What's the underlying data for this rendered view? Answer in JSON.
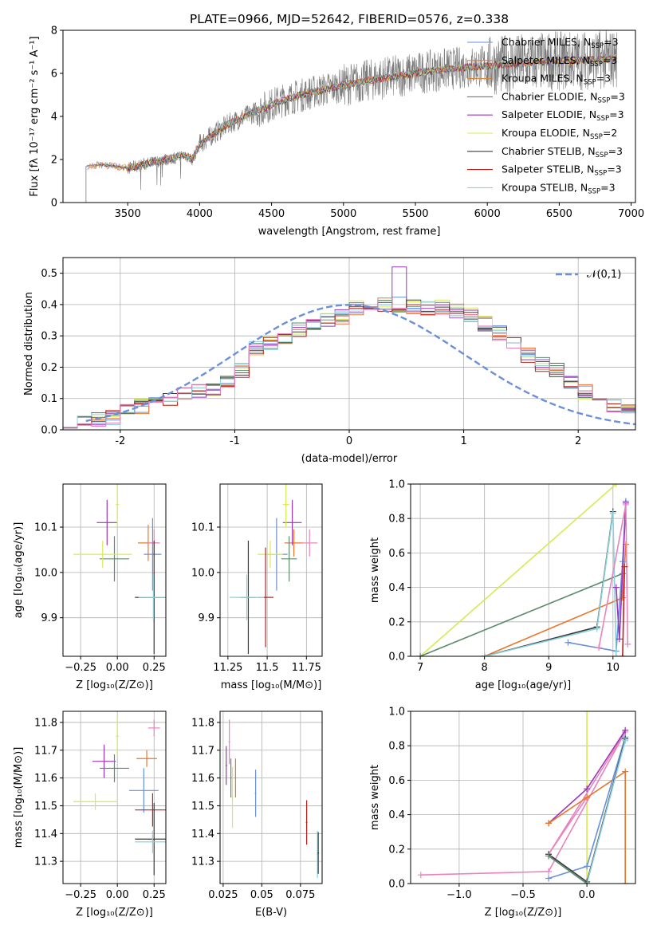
{
  "colors": {
    "chabrier_miles": "#6a8fdb",
    "salpeter_miles": "#e8772e",
    "kroupa_miles": "#d4873a",
    "chabrier_elodie": "#5c8a6a",
    "salpeter_elodie": "#9a35b8",
    "kroupa_elodie": "#d8ea50",
    "chabrier_stelib": "#3b3b3b",
    "salpeter_stelib": "#c0201d",
    "kroupa_stelib": "#8ad1dc",
    "spectrum": "#7a7a7a",
    "gauss": "#6a8fdb",
    "pink": "#e883c0",
    "grid": "#b0b0b0"
  },
  "spectrum_panel": {
    "title": "PLATE=0966, MJD=52642, FIBERID=0576, z=0.338",
    "xlabel": "wavelength [Angstrom, rest frame]",
    "ylabel": "Flux [f_λ 10^-17 erg cm^-2 s^-1 A^-1]",
    "legend": [
      {
        "name": "Chabrier MILES",
        "suffix": "=3",
        "color_key": "chabrier_miles"
      },
      {
        "name": "Salpeter MILES",
        "suffix": "=3",
        "color_key": "salpeter_miles"
      },
      {
        "name": "Kroupa MILES",
        "suffix": "=3",
        "color_key": "kroupa_miles"
      },
      {
        "name": "Chabrier ELODIE",
        "suffix": "=3",
        "color_key": "chabrier_elodie"
      },
      {
        "name": "Salpeter ELODIE",
        "suffix": "=3",
        "color_key": "salpeter_elodie"
      },
      {
        "name": "Kroupa ELODIE",
        "suffix": "=2",
        "color_key": "kroupa_elodie"
      },
      {
        "name": "Chabrier STELIB",
        "suffix": "=3",
        "color_key": "chabrier_stelib"
      },
      {
        "name": "Salpeter STELIB",
        "suffix": "=3",
        "color_key": "salpeter_stelib"
      },
      {
        "name": "Kroupa STELIB",
        "suffix": "=3",
        "color_key": "kroupa_stelib"
      }
    ]
  },
  "chart_data": [
    {
      "type": "line",
      "title": "PLATE=0966, MJD=52642, FIBERID=0576, z=0.338",
      "xlabel": "wavelength [Angstrom, rest frame]",
      "ylabel": "Flux [fλ 10^-17 erg cm^-2 s^-1 A^-1]",
      "xlim": [
        3050,
        7030
      ],
      "ylim": [
        0,
        8
      ],
      "xticks": [
        3500,
        4000,
        4500,
        5000,
        5500,
        6000,
        6500,
        7000
      ],
      "yticks": [
        0,
        2,
        4,
        6,
        8
      ],
      "continuum": {
        "x": [
          3210,
          3300,
          3400,
          3500,
          3600,
          3700,
          3800,
          3900,
          3950,
          4000,
          4100,
          4200,
          4300,
          4400,
          4500,
          4600,
          4800,
          5000,
          5200,
          5400,
          5600,
          5800,
          6000,
          6200,
          6400,
          6600,
          6800,
          6900
        ],
        "y": [
          1.7,
          1.75,
          1.7,
          1.6,
          1.75,
          1.9,
          2.05,
          2.2,
          2.0,
          2.7,
          3.2,
          3.65,
          3.95,
          4.25,
          4.55,
          4.8,
          5.15,
          5.45,
          5.7,
          5.9,
          6.1,
          6.25,
          6.35,
          6.45,
          6.55,
          6.6,
          6.65,
          6.7
        ]
      },
      "legend_position": "right"
    },
    {
      "type": "histogram",
      "xlabel": "(data-model)/error",
      "ylabel": "Normed distribution",
      "xlim": [
        -2.5,
        2.5
      ],
      "ylim": [
        0,
        0.55
      ],
      "xticks": [
        -2,
        -1,
        0,
        1,
        2
      ],
      "yticks": [
        0.0,
        0.1,
        0.2,
        0.3,
        0.4,
        0.5
      ],
      "grid": true,
      "bin_edges_start": -2.5,
      "bin_width": 0.125,
      "base_values": [
        0.03,
        0.025,
        0.03,
        0.04,
        0.06,
        0.075,
        0.09,
        0.1,
        0.11,
        0.12,
        0.13,
        0.15,
        0.19,
        0.26,
        0.28,
        0.3,
        0.32,
        0.33,
        0.35,
        0.36,
        0.39,
        0.4,
        0.4,
        0.4,
        0.39,
        0.39,
        0.39,
        0.38,
        0.37,
        0.34,
        0.31,
        0.27,
        0.24,
        0.21,
        0.19,
        0.15,
        0.12,
        0.1,
        0.08,
        0.06,
        0.05
      ],
      "legend": {
        "label": "𝒩(0,1)",
        "position": "top-right"
      }
    },
    {
      "type": "scatter",
      "xlabel": "Z [log10(Z/Z⊙)]",
      "ylabel": "age [log10(age/yr)]",
      "xlim": [
        -0.37,
        0.33
      ],
      "ylim": [
        9.815,
        10.195
      ],
      "xticks": [
        -0.25,
        0.0,
        0.25
      ],
      "xtick_labels": [
        "−0.25",
        "0.00",
        "0.25"
      ],
      "yticks": [
        9.9,
        10.0,
        10.1
      ],
      "points": [
        {
          "x": 0.21,
          "y": 10.065,
          "xerr": 0.07,
          "yerr": 0.04,
          "c": "salpeter_miles"
        },
        {
          "x": 0.25,
          "y": 10.065,
          "xerr": 0.04,
          "yerr": 0.03,
          "c": "pink"
        },
        {
          "x": 0.24,
          "y": 10.04,
          "xerr": 0.06,
          "yerr": 0.08,
          "c": "chabrier_miles"
        },
        {
          "x": -0.02,
          "y": 10.03,
          "xerr": 0.1,
          "yerr": 0.05,
          "c": "chabrier_elodie"
        },
        {
          "x": -0.07,
          "y": 10.11,
          "xerr": 0.07,
          "yerr": 0.05,
          "c": "salpeter_elodie"
        },
        {
          "x": -0.1,
          "y": 10.04,
          "xerr": 0.2,
          "yerr": 0.03,
          "c": "kroupa_elodie"
        },
        {
          "x": 0.0,
          "y": 10.15,
          "xerr": 0.01,
          "yerr": 0.05,
          "c": "kroupa_elodie"
        },
        {
          "x": 0.25,
          "y": 9.945,
          "xerr": 0.13,
          "yerr": 0.125,
          "c": "chabrier_stelib"
        },
        {
          "x": 0.25,
          "y": 9.945,
          "xerr": 0.12,
          "yerr": 0.055,
          "c": "salpeter_stelib"
        },
        {
          "x": 0.245,
          "y": 9.945,
          "xerr": 0.1,
          "yerr": 0.05,
          "c": "kroupa_stelib"
        }
      ]
    },
    {
      "type": "scatter",
      "xlabel": "mass [log10(M/M⊙)]",
      "xlim": [
        11.2,
        11.85
      ],
      "ylim": [
        9.815,
        10.195
      ],
      "xticks": [
        11.25,
        11.5,
        11.75
      ],
      "yticks": [
        9.9,
        10.0,
        10.1
      ],
      "points": [
        {
          "x": 11.67,
          "y": 10.065,
          "xerr": 0.06,
          "yerr": 0.03,
          "c": "salpeter_miles"
        },
        {
          "x": 11.77,
          "y": 10.065,
          "xerr": 0.05,
          "yerr": 0.03,
          "c": "pink"
        },
        {
          "x": 11.56,
          "y": 10.04,
          "xerr": 0.07,
          "yerr": 0.08,
          "c": "chabrier_miles"
        },
        {
          "x": 11.64,
          "y": 10.03,
          "xerr": 0.05,
          "yerr": 0.05,
          "c": "chabrier_elodie"
        },
        {
          "x": 11.66,
          "y": 10.11,
          "xerr": 0.06,
          "yerr": 0.05,
          "c": "salpeter_elodie"
        },
        {
          "x": 11.52,
          "y": 10.04,
          "xerr": 0.08,
          "yerr": 0.03,
          "c": "kroupa_elodie"
        },
        {
          "x": 11.62,
          "y": 10.15,
          "xerr": 0.02,
          "yerr": 0.05,
          "c": "kroupa_elodie"
        },
        {
          "x": 11.38,
          "y": 9.945,
          "xerr": 0.05,
          "yerr": 0.125,
          "c": "chabrier_stelib"
        },
        {
          "x": 11.49,
          "y": 9.945,
          "xerr": 0.05,
          "yerr": 0.11,
          "c": "salpeter_stelib"
        },
        {
          "x": 11.37,
          "y": 9.945,
          "xerr": 0.11,
          "yerr": 0.05,
          "c": "kroupa_stelib"
        }
      ]
    },
    {
      "type": "line",
      "xlabel": "age [log10(age/yr)]",
      "ylabel": "mass weight",
      "xlim": [
        6.85,
        10.35
      ],
      "ylim": [
        0,
        1
      ],
      "xticks": [
        7,
        8,
        9,
        10
      ],
      "yticks": [
        0.0,
        0.2,
        0.4,
        0.6,
        0.8,
        1.0
      ],
      "grid": true,
      "series": [
        {
          "c": "kroupa_elodie",
          "x": [
            7.0,
            10.05
          ],
          "y": [
            0.0,
            1.0
          ]
        },
        {
          "c": "chabrier_elodie",
          "x": [
            7.0,
            10.15
          ],
          "y": [
            0.0,
            0.48
          ]
        },
        {
          "c": "salpeter_miles",
          "x": [
            8.0,
            10.15,
            10.2
          ],
          "y": [
            0.0,
            0.34,
            0.65
          ]
        },
        {
          "c": "chabrier_miles",
          "x": [
            9.3,
            10.05,
            10.15,
            10.2
          ],
          "y": [
            0.08,
            0.03,
            0.55,
            0.9
          ]
        },
        {
          "c": "chabrier_stelib",
          "x": [
            8.0,
            9.75,
            10.0
          ],
          "y": [
            0.0,
            0.17,
            0.84
          ]
        },
        {
          "c": "kroupa_stelib",
          "x": [
            8.0,
            9.75,
            10.0,
            10.05
          ],
          "y": [
            0.0,
            0.16,
            0.83,
            0.0
          ]
        },
        {
          "c": "salpeter_elodie",
          "x": [
            10.05,
            10.1,
            10.2
          ],
          "y": [
            0.4,
            0.1,
            0.89
          ]
        },
        {
          "c": "pink",
          "x": [
            9.78,
            10.2,
            10.23
          ],
          "y": [
            0.05,
            0.88,
            0.07
          ]
        },
        {
          "c": "salpeter_stelib",
          "x": [
            10.15,
            10.18
          ],
          "y": [
            0.0,
            0.52
          ]
        }
      ]
    },
    {
      "type": "scatter",
      "xlabel": "Z [log10(Z/Z⊙)]",
      "ylabel": "mass [log10(M/M⊙)]",
      "xlim": [
        -0.37,
        0.33
      ],
      "ylim": [
        11.22,
        11.84
      ],
      "xticks": [
        -0.25,
        0.0,
        0.25
      ],
      "xtick_labels": [
        "−0.25",
        "0.00",
        "0.25"
      ],
      "yticks": [
        11.3,
        11.4,
        11.5,
        11.6,
        11.7,
        11.8
      ],
      "points": [
        {
          "x": 0.25,
          "y": 11.78,
          "xerr": 0.04,
          "yerr": 0.03,
          "c": "pink"
        },
        {
          "x": 0.2,
          "y": 11.67,
          "xerr": 0.07,
          "yerr": 0.03,
          "c": "salpeter_miles"
        },
        {
          "x": -0.09,
          "y": 11.66,
          "xerr": 0.08,
          "yerr": 0.06,
          "c": "salpeter_elodie"
        },
        {
          "x": -0.02,
          "y": 11.635,
          "xerr": 0.1,
          "yerr": 0.05,
          "c": "chabrier_elodie"
        },
        {
          "x": 0.18,
          "y": 11.555,
          "xerr": 0.1,
          "yerr": 0.08,
          "c": "chabrier_miles"
        },
        {
          "x": -0.15,
          "y": 11.515,
          "xerr": 0.15,
          "yerr": 0.03,
          "c": "kroupa_elodie"
        },
        {
          "x": 0.0,
          "y": 11.75,
          "xerr": 0.01,
          "yerr": 0.07,
          "c": "kroupa_elodie"
        },
        {
          "x": 0.24,
          "y": 11.485,
          "xerr": 0.12,
          "yerr": 0.06,
          "c": "salpeter_stelib"
        },
        {
          "x": 0.25,
          "y": 11.38,
          "xerr": 0.13,
          "yerr": 0.13,
          "c": "chabrier_stelib"
        },
        {
          "x": 0.24,
          "y": 11.37,
          "xerr": 0.12,
          "yerr": 0.04,
          "c": "kroupa_stelib"
        }
      ]
    },
    {
      "type": "scatter",
      "xlabel": "E(B-V)",
      "xlim": [
        0.023,
        0.089
      ],
      "ylim": [
        11.22,
        11.84
      ],
      "xticks": [
        0.025,
        0.05,
        0.075
      ],
      "yticks": [
        11.3,
        11.4,
        11.5,
        11.6,
        11.7,
        11.8
      ],
      "points": [
        {
          "x": 0.027,
          "y": 11.645,
          "xerr": 0.0005,
          "yerr": 0.07,
          "c": "salpeter_elodie"
        },
        {
          "x": 0.029,
          "y": 11.73,
          "xerr": 0.0005,
          "yerr": 0.08,
          "c": "pink"
        },
        {
          "x": 0.03,
          "y": 11.6,
          "xerr": 0.0005,
          "yerr": 0.07,
          "c": "chabrier_elodie"
        },
        {
          "x": 0.033,
          "y": 11.6,
          "xerr": 0.0005,
          "yerr": 0.07,
          "c": "salpeter_miles"
        },
        {
          "x": 0.031,
          "y": 11.53,
          "xerr": 0.0005,
          "yerr": 0.11,
          "c": "kroupa_elodie"
        },
        {
          "x": 0.046,
          "y": 11.545,
          "xerr": 0.0005,
          "yerr": 0.085,
          "c": "chabrier_miles"
        },
        {
          "x": 0.079,
          "y": 11.44,
          "xerr": 0.0005,
          "yerr": 0.08,
          "c": "salpeter_stelib"
        },
        {
          "x": 0.086,
          "y": 11.325,
          "xerr": 0.0005,
          "yerr": 0.085,
          "c": "kroupa_stelib"
        },
        {
          "x": 0.0865,
          "y": 11.33,
          "xerr": 0.0005,
          "yerr": 0.075,
          "c": "chabrier_stelib"
        }
      ]
    },
    {
      "type": "line",
      "xlabel": "Z [log10(Z/Z⊙)]",
      "ylabel": "mass weight",
      "xlim": [
        -1.38,
        0.38
      ],
      "ylim": [
        0,
        1
      ],
      "xticks": [
        -1.0,
        -0.5,
        0.0
      ],
      "xtick_labels": [
        "−1.0",
        "−0.5",
        "0.0"
      ],
      "yticks": [
        0.0,
        0.2,
        0.4,
        0.6,
        0.8,
        1.0
      ],
      "grid": true,
      "series": [
        {
          "c": "kroupa_elodie",
          "x": [
            0.0,
            0.0
          ],
          "y": [
            0.0,
            1.0
          ]
        },
        {
          "c": "pink",
          "x": [
            -1.3,
            -0.3,
            0.3,
            -0.3,
            0.0
          ],
          "y": [
            0.05,
            0.07,
            0.88,
            0.17,
            0.5
          ]
        },
        {
          "c": "salpeter_elodie",
          "x": [
            -0.3,
            0.0,
            0.3
          ],
          "y": [
            0.35,
            0.55,
            0.89
          ]
        },
        {
          "c": "salpeter_miles",
          "x": [
            -0.3,
            0.0,
            0.3,
            0.3
          ],
          "y": [
            0.35,
            0.5,
            0.65,
            0.0
          ]
        },
        {
          "c": "chabrier_miles",
          "x": [
            -0.3,
            0.0,
            0.3
          ],
          "y": [
            0.03,
            0.1,
            0.85
          ]
        },
        {
          "c": "chabrier_stelib",
          "x": [
            -0.3,
            0.0,
            0.3
          ],
          "y": [
            0.17,
            0.01,
            0.84
          ]
        },
        {
          "c": "kroupa_stelib",
          "x": [
            -0.3,
            0.0,
            0.3
          ],
          "y": [
            0.16,
            0.0,
            0.83
          ]
        },
        {
          "c": "chabrier_elodie",
          "x": [
            -0.3,
            0.0
          ],
          "y": [
            0.16,
            0.0
          ]
        }
      ]
    }
  ]
}
